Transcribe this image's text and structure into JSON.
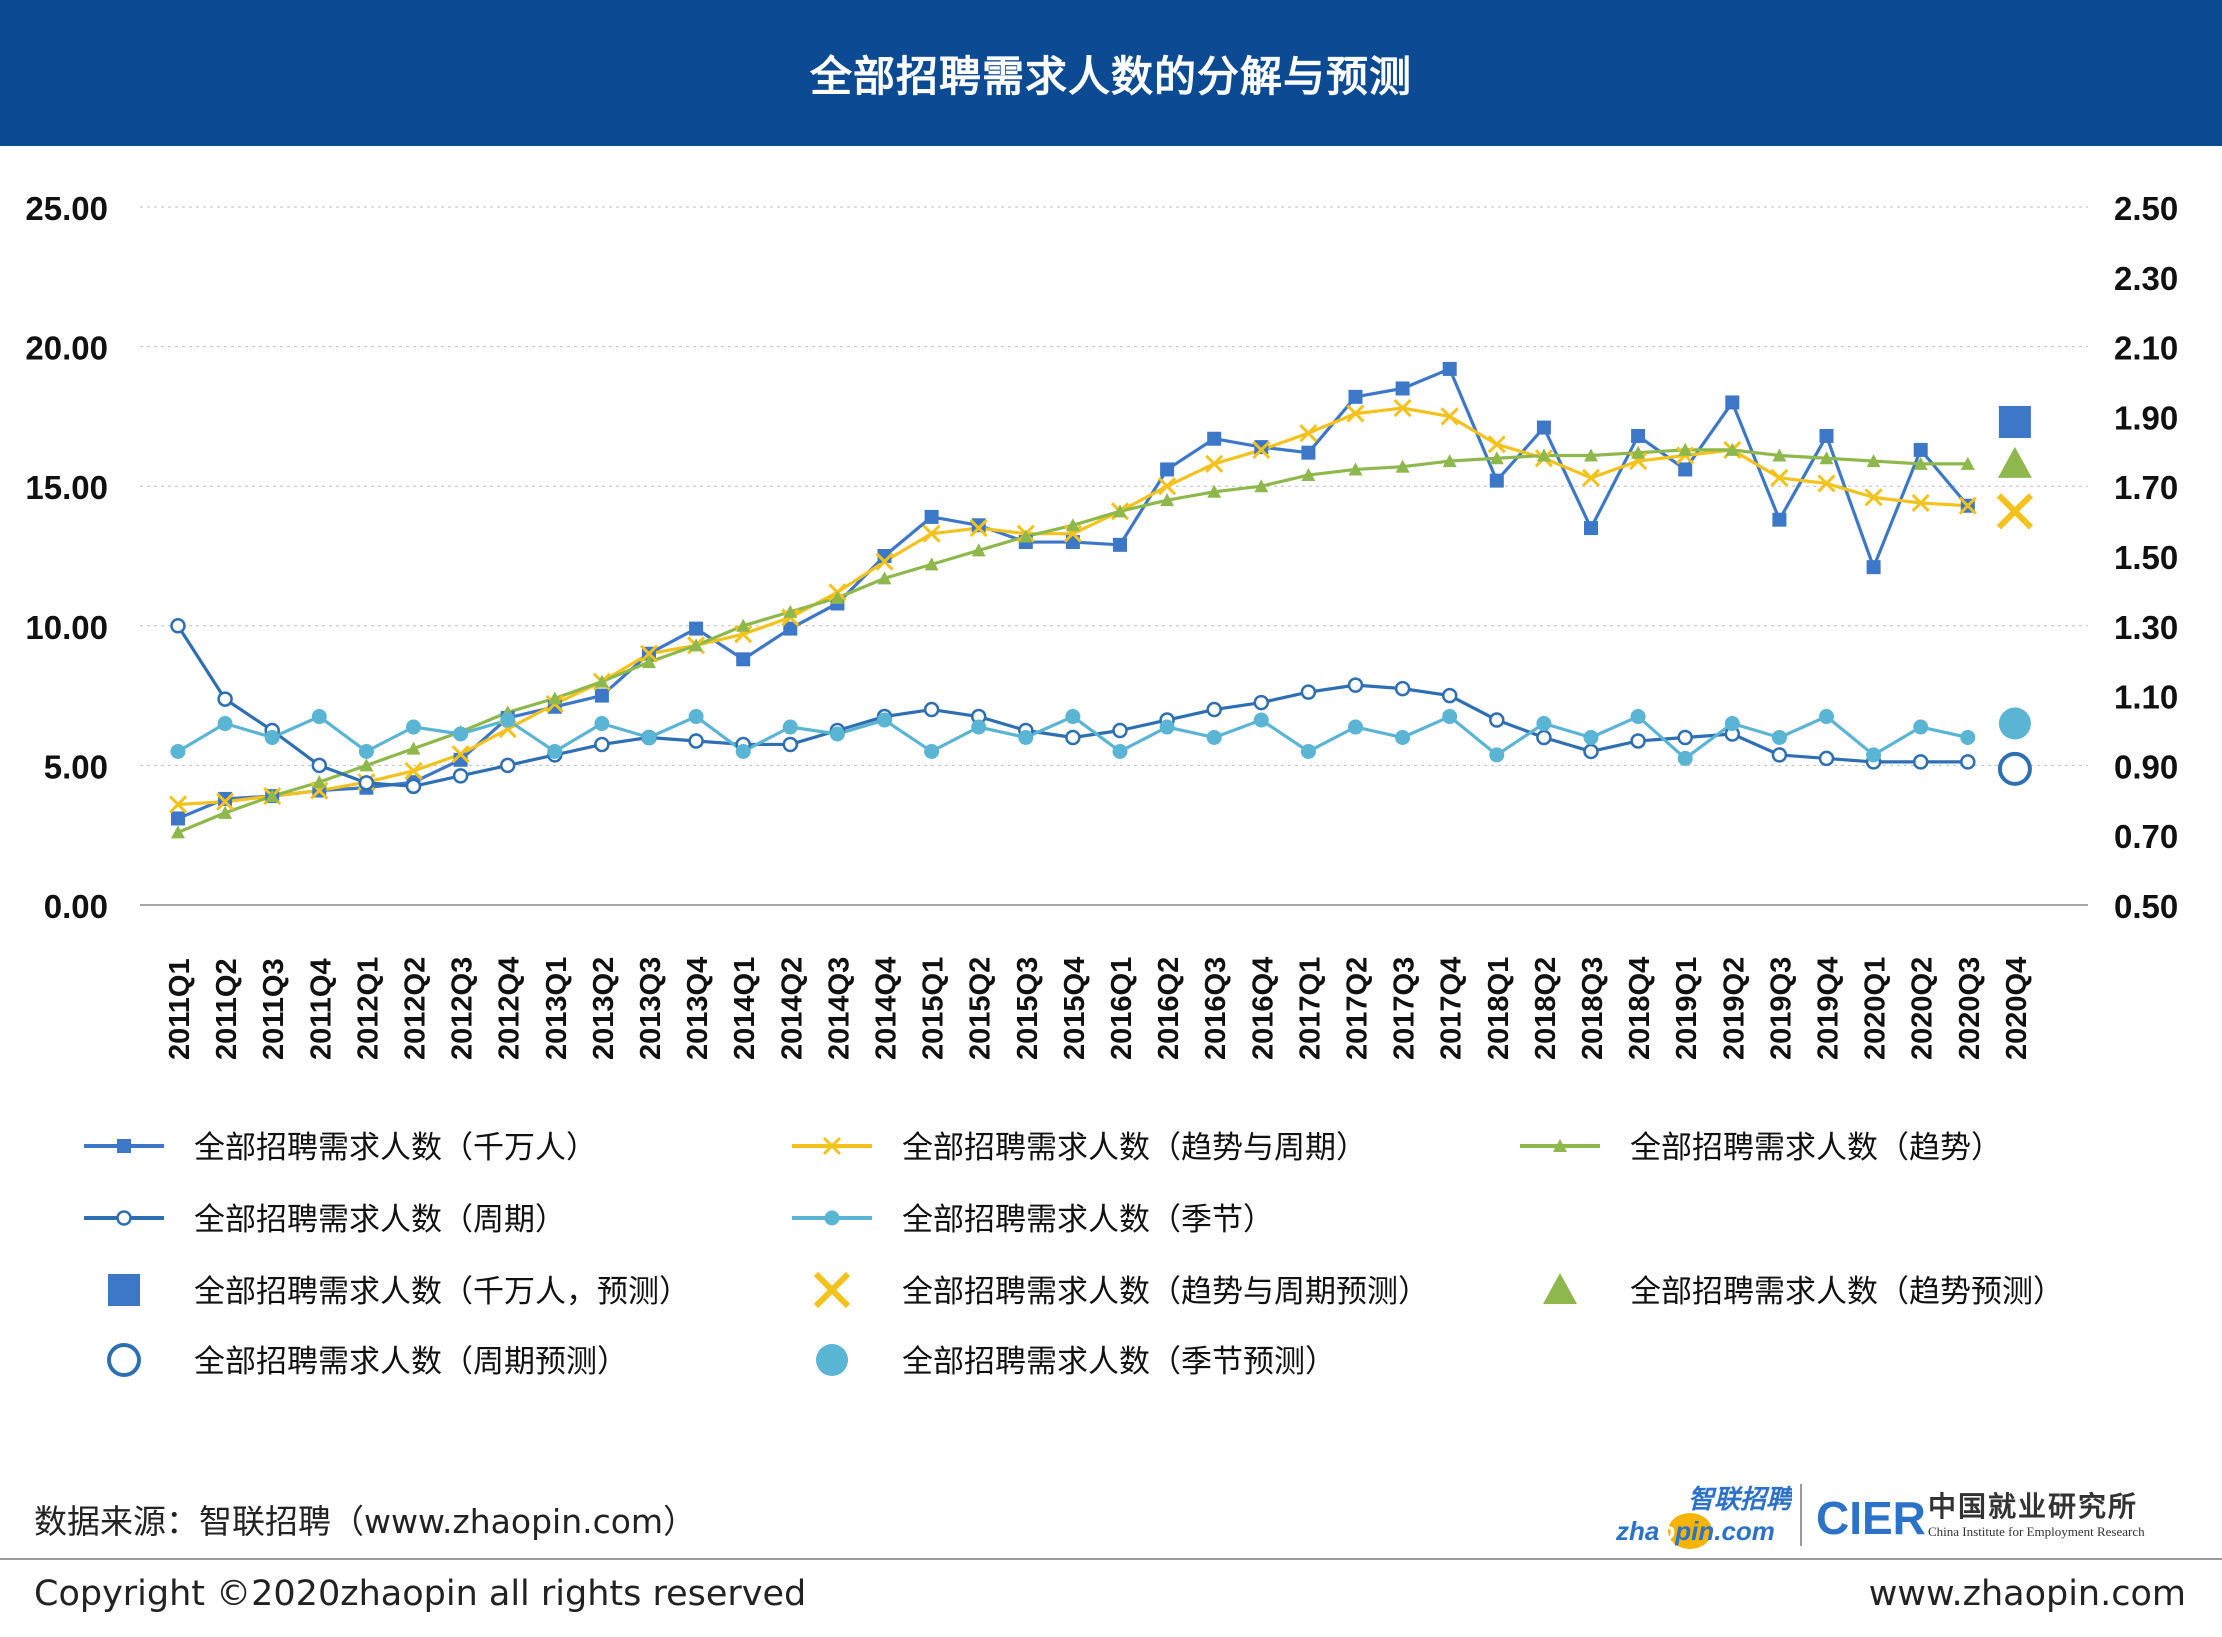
{
  "header": {
    "title": "全部招聘需求人数的分解与预测"
  },
  "footer": {
    "source_note": "数据来源：智联招聘（www.zhaopin.com）",
    "copyright": "Copyright ©2020zhaopin all rights reserved",
    "url": "www.zhaopin.com"
  },
  "logos": {
    "zhaopin_cn": "智联招聘",
    "zhaopin_url_pre": "zha",
    "zhaopin_url_post": "pin.com",
    "cier_abbr": "CIER",
    "cier_cn": "中国就业研究所",
    "cier_en": "China Institute for Employment Research"
  },
  "colors": {
    "header_bg": "#0d4a94",
    "blue": "#3d78c8",
    "yellow": "#f4c21c",
    "green": "#8fb84c",
    "teal": "#5ab4d4",
    "dark_blue": "#2e6fb3",
    "grid": "#bfbfbf",
    "logo_orange": "#f4b400",
    "logo_blue": "#2c72c9"
  },
  "chart_data": {
    "type": "line",
    "title": "全部招聘需求人数的分解与预测",
    "categories": [
      "2011Q1",
      "2011Q2",
      "2011Q3",
      "2011Q4",
      "2012Q1",
      "2012Q2",
      "2012Q3",
      "2012Q4",
      "2013Q1",
      "2013Q2",
      "2013Q3",
      "2013Q4",
      "2014Q1",
      "2014Q2",
      "2014Q3",
      "2014Q4",
      "2015Q1",
      "2015Q2",
      "2015Q3",
      "2015Q4",
      "2016Q1",
      "2016Q2",
      "2016Q3",
      "2016Q4",
      "2017Q1",
      "2017Q2",
      "2017Q3",
      "2017Q4",
      "2018Q1",
      "2018Q2",
      "2018Q3",
      "2018Q4",
      "2019Q1",
      "2019Q2",
      "2019Q3",
      "2019Q4",
      "2020Q1",
      "2020Q2",
      "2020Q3",
      "2020Q4"
    ],
    "y_left": {
      "min": 0,
      "max": 25,
      "ticks": [
        "0.00",
        "5.00",
        "10.00",
        "15.00",
        "20.00",
        "25.00"
      ]
    },
    "y_right": {
      "min": 0.5,
      "max": 2.5,
      "ticks": [
        "0.50",
        "0.70",
        "0.90",
        "1.10",
        "1.30",
        "1.50",
        "1.70",
        "1.90",
        "2.10",
        "2.30",
        "2.50"
      ]
    },
    "grid": true,
    "legend_position": "bottom",
    "series": [
      {
        "name": "全部招聘需求人数（千万人）",
        "axis": "left",
        "color_key": "blue",
        "marker": "square-small",
        "values": [
          3.1,
          3.8,
          3.9,
          4.1,
          4.2,
          4.4,
          5.2,
          6.7,
          7.1,
          7.5,
          9.0,
          9.9,
          8.8,
          9.9,
          10.8,
          12.5,
          13.9,
          13.6,
          13.0,
          13.0,
          12.9,
          15.6,
          16.7,
          16.4,
          16.2,
          18.2,
          18.5,
          19.2,
          15.2,
          17.1,
          13.5,
          16.8,
          15.6,
          18.0,
          13.8,
          16.8,
          12.1,
          16.3,
          14.3,
          null
        ]
      },
      {
        "name": "全部招聘需求人数（趋势与周期）",
        "axis": "left",
        "color_key": "yellow",
        "marker": "x-small",
        "values": [
          3.6,
          3.7,
          3.9,
          4.1,
          4.4,
          4.8,
          5.4,
          6.3,
          7.2,
          8.0,
          9.0,
          9.3,
          9.7,
          10.3,
          11.2,
          12.3,
          13.3,
          13.5,
          13.3,
          13.3,
          14.1,
          15.0,
          15.8,
          16.3,
          16.9,
          17.6,
          17.8,
          17.5,
          16.5,
          16.0,
          15.3,
          15.9,
          16.1,
          16.3,
          15.3,
          15.1,
          14.6,
          14.4,
          14.3,
          null
        ]
      },
      {
        "name": "全部招聘需求人数（趋势）",
        "axis": "left",
        "color_key": "green",
        "marker": "triangle-small",
        "values": [
          2.6,
          3.3,
          3.9,
          4.4,
          5.0,
          5.6,
          6.2,
          6.9,
          7.4,
          8.0,
          8.7,
          9.3,
          10.0,
          10.5,
          11.0,
          11.7,
          12.2,
          12.7,
          13.2,
          13.6,
          14.1,
          14.5,
          14.8,
          15.0,
          15.4,
          15.6,
          15.7,
          15.9,
          16.0,
          16.1,
          16.1,
          16.2,
          16.3,
          16.3,
          16.1,
          16.0,
          15.9,
          15.8,
          15.8,
          null
        ]
      },
      {
        "name": "全部招聘需求人数（周期）",
        "axis": "right",
        "color_key": "dark_blue",
        "marker": "circle-open-small",
        "values": [
          1.3,
          1.09,
          1.0,
          0.9,
          0.85,
          0.84,
          0.87,
          0.9,
          0.93,
          0.96,
          0.98,
          0.97,
          0.96,
          0.96,
          1.0,
          1.04,
          1.06,
          1.04,
          1.0,
          0.98,
          1.0,
          1.03,
          1.06,
          1.08,
          1.11,
          1.13,
          1.12,
          1.1,
          1.03,
          0.98,
          0.94,
          0.97,
          0.98,
          0.99,
          0.93,
          0.92,
          0.91,
          0.91,
          0.91,
          null
        ]
      },
      {
        "name": "全部招聘需求人数（季节）",
        "axis": "right",
        "color_key": "teal",
        "marker": "circle-filled-small",
        "values": [
          0.94,
          1.02,
          0.98,
          1.04,
          0.94,
          1.01,
          0.99,
          1.03,
          0.94,
          1.02,
          0.98,
          1.04,
          0.94,
          1.01,
          0.99,
          1.03,
          0.94,
          1.01,
          0.98,
          1.04,
          0.94,
          1.01,
          0.98,
          1.03,
          0.94,
          1.01,
          0.98,
          1.04,
          0.93,
          1.02,
          0.98,
          1.04,
          0.92,
          1.02,
          0.98,
          1.04,
          0.93,
          1.01,
          0.98,
          null
        ]
      },
      {
        "name": "全部招聘需求人数（千万人，预测）",
        "axis": "left",
        "color_key": "blue",
        "marker": "square-large",
        "forecast": true,
        "values": [
          null,
          null,
          null,
          null,
          null,
          null,
          null,
          null,
          null,
          null,
          null,
          null,
          null,
          null,
          null,
          null,
          null,
          null,
          null,
          null,
          null,
          null,
          null,
          null,
          null,
          null,
          null,
          null,
          null,
          null,
          null,
          null,
          null,
          null,
          null,
          null,
          null,
          null,
          null,
          17.3
        ]
      },
      {
        "name": "全部招聘需求人数（趋势与周期预测）",
        "axis": "left",
        "color_key": "yellow",
        "marker": "x-large",
        "forecast": true,
        "values": [
          null,
          null,
          null,
          null,
          null,
          null,
          null,
          null,
          null,
          null,
          null,
          null,
          null,
          null,
          null,
          null,
          null,
          null,
          null,
          null,
          null,
          null,
          null,
          null,
          null,
          null,
          null,
          null,
          null,
          null,
          null,
          null,
          null,
          null,
          null,
          null,
          null,
          null,
          null,
          14.1
        ]
      },
      {
        "name": "全部招聘需求人数（趋势预测）",
        "axis": "left",
        "color_key": "green",
        "marker": "triangle-large",
        "forecast": true,
        "values": [
          null,
          null,
          null,
          null,
          null,
          null,
          null,
          null,
          null,
          null,
          null,
          null,
          null,
          null,
          null,
          null,
          null,
          null,
          null,
          null,
          null,
          null,
          null,
          null,
          null,
          null,
          null,
          null,
          null,
          null,
          null,
          null,
          null,
          null,
          null,
          null,
          null,
          null,
          null,
          15.8
        ]
      },
      {
        "name": "全部招聘需求人数（周期预测）",
        "axis": "right",
        "color_key": "dark_blue",
        "marker": "circle-open-large",
        "forecast": true,
        "values": [
          null,
          null,
          null,
          null,
          null,
          null,
          null,
          null,
          null,
          null,
          null,
          null,
          null,
          null,
          null,
          null,
          null,
          null,
          null,
          null,
          null,
          null,
          null,
          null,
          null,
          null,
          null,
          null,
          null,
          null,
          null,
          null,
          null,
          null,
          null,
          null,
          null,
          null,
          null,
          0.89
        ]
      },
      {
        "name": "全部招聘需求人数（季节预测）",
        "axis": "right",
        "color_key": "teal",
        "marker": "circle-filled-large",
        "forecast": true,
        "values": [
          null,
          null,
          null,
          null,
          null,
          null,
          null,
          null,
          null,
          null,
          null,
          null,
          null,
          null,
          null,
          null,
          null,
          null,
          null,
          null,
          null,
          null,
          null,
          null,
          null,
          null,
          null,
          null,
          null,
          null,
          null,
          null,
          null,
          null,
          null,
          null,
          null,
          null,
          null,
          1.02
        ]
      }
    ]
  }
}
